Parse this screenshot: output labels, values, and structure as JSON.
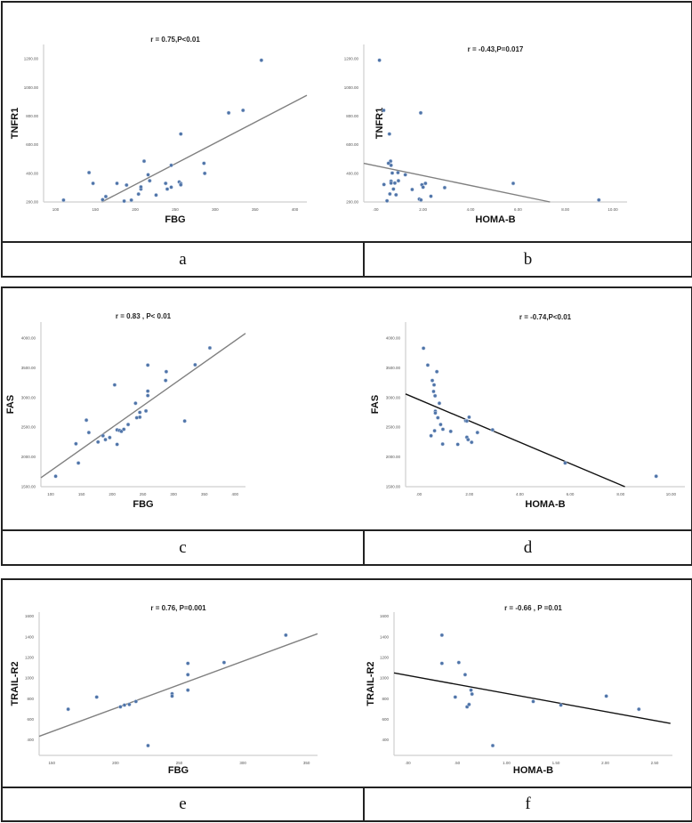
{
  "panel_labels": [
    "a",
    "b",
    "c",
    "d",
    "e",
    "f"
  ],
  "colors": {
    "point": "#4f74a8",
    "fit_gray": "#808080",
    "fit_black": "#111111",
    "axis": "#cfcfcf"
  },
  "chart_data": [
    {
      "type": "scatter",
      "title": "r = 0.75,P<0.01",
      "xlabel": "FBG",
      "ylabel": "TNFR1",
      "xlim": [
        85,
        415
      ],
      "ylim": [
        200,
        1300
      ],
      "xticks": [
        {
          "v": 100,
          "label": "100"
        },
        {
          "v": 150,
          "label": "150"
        },
        {
          "v": 200,
          "label": "200"
        },
        {
          "v": 250,
          "label": "250"
        },
        {
          "v": 300,
          "label": "300"
        },
        {
          "v": 350,
          "label": "350"
        },
        {
          "v": 400,
          "label": "400"
        }
      ],
      "yticks": [
        {
          "v": 200,
          "label": "200.00"
        },
        {
          "v": 400,
          "label": "400.00"
        },
        {
          "v": 600,
          "label": "600.00"
        },
        {
          "v": 800,
          "label": "800.00"
        },
        {
          "v": 1000,
          "label": "1000.00"
        },
        {
          "v": 1200,
          "label": "1200.00"
        }
      ],
      "points": [
        [
          110,
          213
        ],
        [
          142,
          405
        ],
        [
          147,
          330
        ],
        [
          159,
          216
        ],
        [
          163,
          238
        ],
        [
          177,
          330
        ],
        [
          186,
          206
        ],
        [
          189,
          318
        ],
        [
          195,
          213
        ],
        [
          204,
          255
        ],
        [
          207,
          290
        ],
        [
          207,
          305
        ],
        [
          211,
          485
        ],
        [
          216,
          390
        ],
        [
          218,
          348
        ],
        [
          226,
          248
        ],
        [
          238,
          330
        ],
        [
          240,
          290
        ],
        [
          245,
          303
        ],
        [
          245,
          456
        ],
        [
          255,
          340
        ],
        [
          257,
          329
        ],
        [
          257,
          320
        ],
        [
          257,
          675
        ],
        [
          286,
          470
        ],
        [
          287,
          400
        ],
        [
          317,
          822
        ],
        [
          335,
          840
        ],
        [
          358,
          1190
        ]
      ],
      "fit_line": [
        [
          158,
          200
        ],
        [
          415,
          945
        ]
      ],
      "fit_color": "fit_gray"
    },
    {
      "type": "scatter",
      "title": "r = -0.43,P=0.017",
      "xlabel": "HOMA-B",
      "ylabel": "TNFR1",
      "xlim": [
        -0.5,
        10.6
      ],
      "ylim": [
        200,
        1300
      ],
      "xticks": [
        {
          "v": 0,
          "label": ".00"
        },
        {
          "v": 2,
          "label": "2.00"
        },
        {
          "v": 4,
          "label": "4.00"
        },
        {
          "v": 6,
          "label": "6.00"
        },
        {
          "v": 8,
          "label": "8.00"
        },
        {
          "v": 10,
          "label": "10.00"
        }
      ],
      "yticks": [
        {
          "v": 200,
          "label": "200.00"
        },
        {
          "v": 400,
          "label": "400.00"
        },
        {
          "v": 600,
          "label": "600.00"
        },
        {
          "v": 800,
          "label": "800.00"
        },
        {
          "v": 1000,
          "label": "1000.00"
        },
        {
          "v": 1200,
          "label": "1200.00"
        }
      ],
      "points": [
        [
          0.16,
          1190
        ],
        [
          0.34,
          840
        ],
        [
          0.58,
          675
        ],
        [
          1.9,
          822
        ],
        [
          0.63,
          485
        ],
        [
          0.54,
          470
        ],
        [
          0.65,
          456
        ],
        [
          0.7,
          402
        ],
        [
          0.94,
          405
        ],
        [
          1.25,
          390
        ],
        [
          0.65,
          345
        ],
        [
          0.65,
          332
        ],
        [
          0.96,
          348
        ],
        [
          0.81,
          332
        ],
        [
          0.35,
          322
        ],
        [
          0.75,
          290
        ],
        [
          1.54,
          287
        ],
        [
          1.95,
          320
        ],
        [
          2.0,
          303
        ],
        [
          2.1,
          330
        ],
        [
          0.6,
          256
        ],
        [
          0.86,
          250
        ],
        [
          0.48,
          208
        ],
        [
          1.84,
          220
        ],
        [
          1.91,
          214
        ],
        [
          2.33,
          240
        ],
        [
          2.91,
          300
        ],
        [
          5.8,
          330
        ],
        [
          9.41,
          214
        ]
      ],
      "fit_line": [
        [
          -0.5,
          470
        ],
        [
          7.35,
          200
        ]
      ],
      "fit_color": "fit_gray"
    },
    {
      "type": "scatter",
      "title": "r = 0.83 , P< 0.01",
      "xlabel": "FBG",
      "ylabel": "FAS",
      "xlim": [
        84,
        417
      ],
      "ylim": [
        1500,
        4270
      ],
      "xticks": [
        {
          "v": 100,
          "label": "100"
        },
        {
          "v": 150,
          "label": "150"
        },
        {
          "v": 200,
          "label": "200"
        },
        {
          "v": 250,
          "label": "250"
        },
        {
          "v": 300,
          "label": "300"
        },
        {
          "v": 350,
          "label": "350"
        },
        {
          "v": 400,
          "label": "400"
        }
      ],
      "yticks": [
        {
          "v": 1500,
          "label": "1500.00"
        },
        {
          "v": 2000,
          "label": "2000.00"
        },
        {
          "v": 2500,
          "label": "2500.00"
        },
        {
          "v": 3000,
          "label": "3000.00"
        },
        {
          "v": 3500,
          "label": "3500.00"
        },
        {
          "v": 4000,
          "label": "4000.00"
        }
      ],
      "points": [
        [
          108,
          1675
        ],
        [
          141,
          2222
        ],
        [
          145,
          1898
        ],
        [
          158,
          2620
        ],
        [
          162,
          2411
        ],
        [
          177,
          2252
        ],
        [
          185,
          2357
        ],
        [
          189,
          2292
        ],
        [
          196,
          2327
        ],
        [
          204,
          3213
        ],
        [
          208,
          2212
        ],
        [
          208,
          2456
        ],
        [
          212,
          2446
        ],
        [
          215,
          2431
        ],
        [
          219,
          2466
        ],
        [
          226,
          2546
        ],
        [
          238,
          2904
        ],
        [
          240,
          2660
        ],
        [
          245,
          2670
        ],
        [
          245,
          2750
        ],
        [
          255,
          2775
        ],
        [
          258,
          3546
        ],
        [
          258,
          3108
        ],
        [
          258,
          3033
        ],
        [
          287,
          3287
        ],
        [
          288,
          3436
        ],
        [
          318,
          2605
        ],
        [
          335,
          3551
        ],
        [
          359,
          3835
        ]
      ],
      "fit_line": [
        [
          84,
          1650
        ],
        [
          417,
          4080
        ]
      ],
      "fit_color": "fit_gray"
    },
    {
      "type": "scatter",
      "title": "r = -0.74,P<0.01",
      "xlabel": "HOMA-B",
      "ylabel": "FAS",
      "xlim": [
        -0.53,
        10.55
      ],
      "ylim": [
        1500,
        4270
      ],
      "xticks": [
        {
          "v": 0,
          "label": ".00"
        },
        {
          "v": 2,
          "label": "2.00"
        },
        {
          "v": 4,
          "label": "4.00"
        },
        {
          "v": 6,
          "label": "6.00"
        },
        {
          "v": 8,
          "label": "8.00"
        },
        {
          "v": 10,
          "label": "10.00"
        }
      ],
      "yticks": [
        {
          "v": 1500,
          "label": "1500.00"
        },
        {
          "v": 2000,
          "label": "2000.00"
        },
        {
          "v": 2500,
          "label": "2500.00"
        },
        {
          "v": 3000,
          "label": "3000.00"
        },
        {
          "v": 3500,
          "label": "3500.00"
        },
        {
          "v": 4000,
          "label": "4000.00"
        }
      ],
      "points": [
        [
          0.18,
          3830
        ],
        [
          0.35,
          3546
        ],
        [
          0.71,
          3436
        ],
        [
          0.53,
          3287
        ],
        [
          0.6,
          3213
        ],
        [
          0.58,
          3103
        ],
        [
          0.64,
          3029
        ],
        [
          0.81,
          2904
        ],
        [
          0.65,
          2770
        ],
        [
          0.65,
          2740
        ],
        [
          0.75,
          2660
        ],
        [
          0.86,
          2546
        ],
        [
          0.95,
          2466
        ],
        [
          0.62,
          2441
        ],
        [
          0.48,
          2357
        ],
        [
          0.94,
          2217
        ],
        [
          1.26,
          2431
        ],
        [
          1.54,
          2212
        ],
        [
          1.85,
          2610
        ],
        [
          1.9,
          2605
        ],
        [
          1.99,
          2670
        ],
        [
          1.9,
          2332
        ],
        [
          1.95,
          2292
        ],
        [
          2.09,
          2247
        ],
        [
          2.32,
          2411
        ],
        [
          2.92,
          2456
        ],
        [
          5.8,
          1898
        ],
        [
          9.41,
          1675
        ]
      ],
      "fit_line": [
        [
          -0.53,
          3060
        ],
        [
          8.17,
          1500
        ]
      ],
      "fit_color": "fit_black"
    },
    {
      "type": "scatter",
      "title": "r = 0.76, P=0.001",
      "xlabel": "FBG",
      "ylabel": "TRAIL-R2",
      "xlim": [
        140,
        358.6
      ],
      "ylim": [
        250,
        1640
      ],
      "xticks": [
        {
          "v": 150,
          "label": "150"
        },
        {
          "v": 200,
          "label": "200"
        },
        {
          "v": 250,
          "label": "250"
        },
        {
          "v": 300,
          "label": "300"
        },
        {
          "v": 350,
          "label": "350"
        }
      ],
      "yticks": [
        {
          "v": 400,
          "label": "400"
        },
        {
          "v": 600,
          "label": "600"
        },
        {
          "v": 800,
          "label": "800"
        },
        {
          "v": 1000,
          "label": "1000"
        },
        {
          "v": 1200,
          "label": "1200"
        },
        {
          "v": 1400,
          "label": "1400"
        },
        {
          "v": 1600,
          "label": "1600"
        }
      ],
      "points": [
        [
          162.8,
          698
        ],
        [
          185.2,
          816
        ],
        [
          203.8,
          721
        ],
        [
          207,
          738
        ],
        [
          210.8,
          744
        ],
        [
          216,
          773
        ],
        [
          225.5,
          345
        ],
        [
          244.4,
          848
        ],
        [
          244.4,
          825
        ],
        [
          256.8,
          1143
        ],
        [
          256.8,
          1033
        ],
        [
          256.8,
          883
        ],
        [
          285.2,
          1151
        ],
        [
          333.7,
          1417
        ]
      ],
      "fit_line": [
        [
          140,
          435
        ],
        [
          358.6,
          1430
        ]
      ],
      "fit_color": "fit_gray"
    },
    {
      "type": "scatter",
      "title": "r = -0.66 , P =0.01",
      "xlabel": "HOMA-B",
      "ylabel": "TRAIL-R2",
      "xlim": [
        -0.14,
        2.68
      ],
      "ylim": [
        250,
        1640
      ],
      "xticks": [
        {
          "v": 0,
          "label": ".00"
        },
        {
          "v": 0.5,
          "label": ".50"
        },
        {
          "v": 1,
          "label": "1.00"
        },
        {
          "v": 1.5,
          "label": "1.50"
        },
        {
          "v": 2,
          "label": "2.00"
        },
        {
          "v": 2.5,
          "label": "2.50"
        }
      ],
      "yticks": [
        {
          "v": 400,
          "label": "400"
        },
        {
          "v": 600,
          "label": "600"
        },
        {
          "v": 800,
          "label": "800"
        },
        {
          "v": 1000,
          "label": "1000"
        },
        {
          "v": 1200,
          "label": "1200"
        },
        {
          "v": 1400,
          "label": "1400"
        },
        {
          "v": 1600,
          "label": "1600"
        }
      ],
      "points": [
        [
          0.345,
          1417
        ],
        [
          0.345,
          1143
        ],
        [
          0.516,
          1151
        ],
        [
          0.58,
          1033
        ],
        [
          0.64,
          883
        ],
        [
          0.65,
          845
        ],
        [
          0.48,
          816
        ],
        [
          0.6,
          721
        ],
        [
          0.62,
          744
        ],
        [
          0.86,
          345
        ],
        [
          1.27,
          773
        ],
        [
          1.55,
          738
        ],
        [
          2.01,
          825
        ],
        [
          2.34,
          698
        ]
      ],
      "fit_line": [
        [
          -0.14,
          1050
        ],
        [
          2.66,
          560
        ]
      ],
      "fit_color": "fit_black"
    }
  ]
}
